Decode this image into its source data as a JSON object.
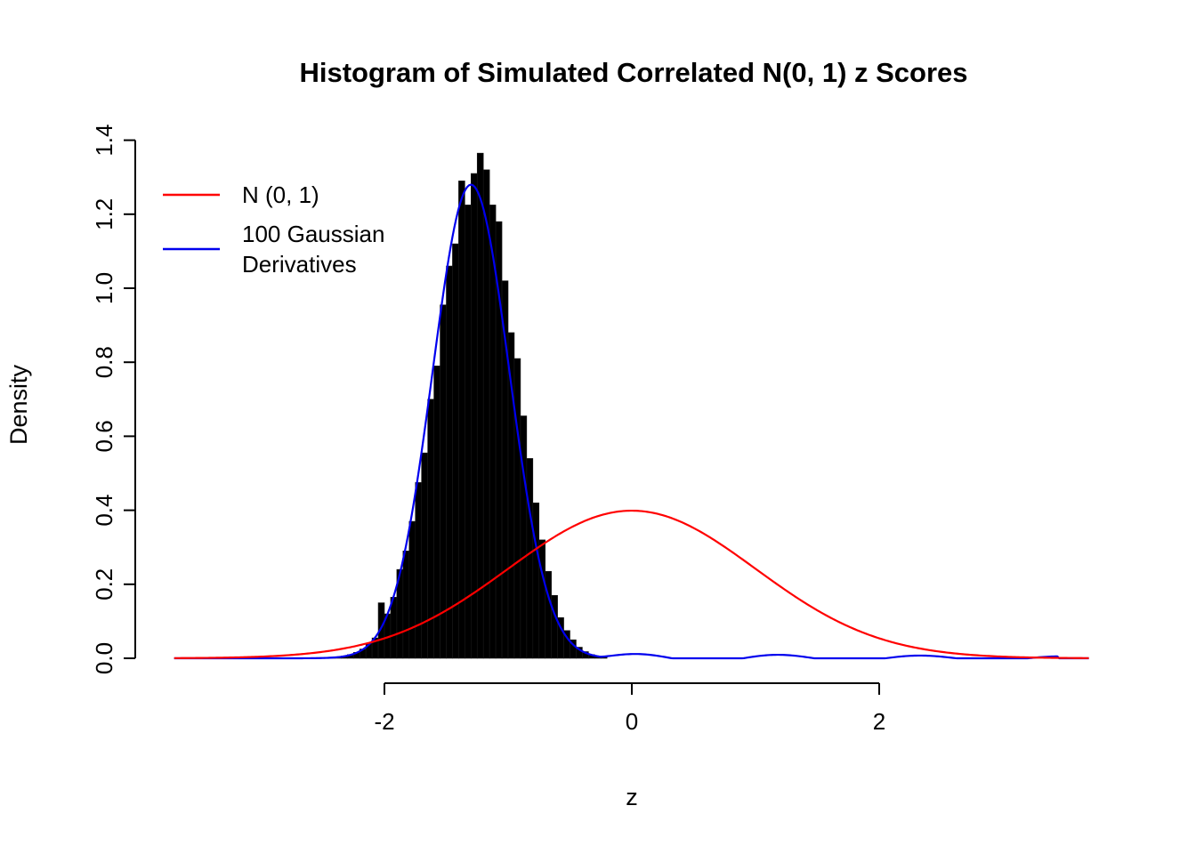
{
  "chart_data": {
    "type": "histogram",
    "title": "Histogram of Simulated Correlated N(0, 1) z Scores",
    "xlabel": "z",
    "ylabel": "Density",
    "xlim": [
      -3.7,
      3.7
    ],
    "ylim": [
      0,
      1.4
    ],
    "grid": false,
    "legend_position": "top-left",
    "x_ticks": [
      {
        "value": -2,
        "label": "-2"
      },
      {
        "value": 0,
        "label": "0"
      },
      {
        "value": 2,
        "label": "2"
      }
    ],
    "y_ticks": [
      {
        "value": 0.0,
        "label": "0.0"
      },
      {
        "value": 0.2,
        "label": "0.2"
      },
      {
        "value": 0.4,
        "label": "0.4"
      },
      {
        "value": 0.6,
        "label": "0.6"
      },
      {
        "value": 0.8,
        "label": "0.8"
      },
      {
        "value": 1.0,
        "label": "1.0"
      },
      {
        "value": 1.2,
        "label": "1.2"
      },
      {
        "value": 1.4,
        "label": "1.4"
      }
    ],
    "histogram": {
      "bin_start": -2.6,
      "bin_width": 0.05,
      "bar_color": "#000000",
      "densities": [
        0.0,
        0.002,
        0.001,
        0.003,
        0.002,
        0.006,
        0.01,
        0.016,
        0.025,
        0.04,
        0.055,
        0.15,
        0.12,
        0.165,
        0.24,
        0.29,
        0.37,
        0.475,
        0.555,
        0.7,
        0.79,
        0.955,
        1.06,
        1.12,
        1.29,
        1.225,
        1.31,
        1.365,
        1.32,
        1.225,
        1.18,
        1.02,
        0.88,
        0.81,
        0.655,
        0.54,
        0.42,
        0.32,
        0.235,
        0.17,
        0.11,
        0.075,
        0.05,
        0.03,
        0.018,
        0.01,
        0.005,
        0.003
      ]
    },
    "curves": [
      {
        "id": "normal",
        "name": "N (0, 1)",
        "color": "#FF0000",
        "mean": 0,
        "sd": 1,
        "peak": 0.3989
      },
      {
        "id": "gaussian-derivatives",
        "name": "100 Gaussian Derivatives",
        "color": "#0000EE",
        "mean": -1.3,
        "sd": 0.31,
        "peak": 1.28,
        "wiggle": {
          "from": -0.25,
          "to": 3.45,
          "amplitude": 0.012,
          "period": 1.15
        }
      }
    ],
    "legend": {
      "items": [
        {
          "lines": [
            "N (0, 1)"
          ],
          "color": "#FF0000"
        },
        {
          "lines": [
            "100 Gaussian",
            "Derivatives"
          ],
          "color": "#0000EE"
        }
      ]
    }
  }
}
